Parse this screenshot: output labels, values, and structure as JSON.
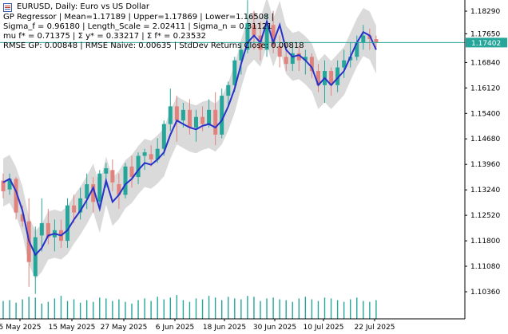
{
  "window": {
    "title": "EURUSD, Daily:  Euro vs US Dollar"
  },
  "indicator": {
    "line1": "GP Regressor | Mean=1.17189 | Upper=1.17869 | Lower=1.16508 |",
    "line2": "Sigma_f = 0.96180 | Length_Scale = 2.02411 | Sigma_n = 0.31121",
    "line3": "mu f* = 0.71375 | Σ y* = 0.33217 | Σ f* = 0.23532",
    "line4": "RMSE GP: 0.00848 | RMSE Naive: 0.00635 | StdDev Returns Close: 0.00818"
  },
  "colors": {
    "bull": "#26a69a",
    "bear": "#e0837e",
    "mean_line": "#2832c8",
    "band": "#d3d3d3",
    "price_line": "#26a69a",
    "volume": "#26a69a"
  },
  "chart_data": {
    "type": "candlestick",
    "symbol": "EURUSD",
    "timeframe": "Daily",
    "ylim": [
      1.1,
      1.186
    ],
    "y_ticks": [
      "1.18290",
      "1.17650",
      "1.16840",
      "1.16120",
      "1.15400",
      "1.14680",
      "1.13960",
      "1.13240",
      "1.12520",
      "1.11800",
      "1.11080",
      "1.10360"
    ],
    "x_ticks": [
      "5 May 2025",
      "15 May 2025",
      "27 May 2025",
      "6 Jun 2025",
      "18 Jun 2025",
      "30 Jun 2025",
      "10 Jul 2025",
      "22 Jul 2025"
    ],
    "current_price": "1.17402",
    "current_price_value": 1.17402,
    "ohlc": [
      [
        1.135,
        1.137,
        1.13,
        1.132
      ],
      [
        1.1325,
        1.137,
        1.131,
        1.1355
      ],
      [
        1.1355,
        1.136,
        1.124,
        1.126
      ],
      [
        1.1255,
        1.128,
        1.122,
        1.1235
      ],
      [
        1.1235,
        1.13,
        1.105,
        1.112
      ],
      [
        1.108,
        1.122,
        1.103,
        1.119
      ],
      [
        1.1195,
        1.13,
        1.115,
        1.123
      ],
      [
        1.123,
        1.127,
        1.117,
        1.119
      ],
      [
        1.119,
        1.124,
        1.115,
        1.121
      ],
      [
        1.121,
        1.124,
        1.116,
        1.118
      ],
      [
        1.118,
        1.13,
        1.116,
        1.128
      ],
      [
        1.128,
        1.131,
        1.123,
        1.126
      ],
      [
        1.126,
        1.133,
        1.124,
        1.13
      ],
      [
        1.13,
        1.137,
        1.127,
        1.134
      ],
      [
        1.134,
        1.136,
        1.126,
        1.129
      ],
      [
        1.129,
        1.138,
        1.128,
        1.137
      ],
      [
        1.137,
        1.14,
        1.133,
        1.1385
      ],
      [
        1.138,
        1.141,
        1.132,
        1.1345
      ],
      [
        1.134,
        1.137,
        1.127,
        1.131
      ],
      [
        1.131,
        1.14,
        1.13,
        1.139
      ],
      [
        1.139,
        1.142,
        1.133,
        1.136
      ],
      [
        1.136,
        1.143,
        1.134,
        1.142
      ],
      [
        1.142,
        1.144,
        1.138,
        1.143
      ],
      [
        1.1425,
        1.145,
        1.139,
        1.141
      ],
      [
        1.141,
        1.147,
        1.14,
        1.144
      ],
      [
        1.144,
        1.152,
        1.142,
        1.151
      ],
      [
        1.151,
        1.161,
        1.149,
        1.156
      ],
      [
        1.156,
        1.159,
        1.146,
        1.152
      ],
      [
        1.152,
        1.157,
        1.15,
        1.155
      ],
      [
        1.155,
        1.158,
        1.148,
        1.15
      ],
      [
        1.15,
        1.155,
        1.146,
        1.153
      ],
      [
        1.153,
        1.156,
        1.149,
        1.151
      ],
      [
        1.151,
        1.158,
        1.15,
        1.155
      ],
      [
        1.155,
        1.16,
        1.145,
        1.148
      ],
      [
        1.148,
        1.161,
        1.147,
        1.159
      ],
      [
        1.159,
        1.163,
        1.156,
        1.162
      ],
      [
        1.162,
        1.17,
        1.16,
        1.169
      ],
      [
        1.169,
        1.174,
        1.165,
        1.172
      ],
      [
        1.172,
        1.186,
        1.171,
        1.1795
      ],
      [
        1.179,
        1.183,
        1.172,
        1.176
      ],
      [
        1.176,
        1.18,
        1.169,
        1.172
      ],
      [
        1.172,
        1.182,
        1.17,
        1.179
      ],
      [
        1.179,
        1.183,
        1.171,
        1.173
      ],
      [
        1.173,
        1.176,
        1.167,
        1.17
      ],
      [
        1.17,
        1.174,
        1.166,
        1.168
      ],
      [
        1.168,
        1.173,
        1.166,
        1.171
      ],
      [
        1.171,
        1.173,
        1.166,
        1.169
      ],
      [
        1.169,
        1.172,
        1.165,
        1.17
      ],
      [
        1.17,
        1.171,
        1.164,
        1.166
      ],
      [
        1.166,
        1.168,
        1.16,
        1.162
      ],
      [
        1.162,
        1.169,
        1.157,
        1.166
      ],
      [
        1.166,
        1.167,
        1.159,
        1.162
      ],
      [
        1.162,
        1.169,
        1.16,
        1.167
      ],
      [
        1.167,
        1.172,
        1.164,
        1.169
      ],
      [
        1.169,
        1.174,
        1.167,
        1.17
      ],
      [
        1.17,
        1.176,
        1.169,
        1.174
      ],
      [
        1.174,
        1.179,
        1.172,
        1.176
      ],
      [
        1.176,
        1.178,
        1.172,
        1.175
      ],
      [
        1.175,
        1.176,
        1.172,
        1.174
      ]
    ],
    "gp_mean": [
      1.1345,
      1.1355,
      1.132,
      1.1265,
      1.118,
      1.114,
      1.116,
      1.1195,
      1.12,
      1.1195,
      1.121,
      1.124,
      1.1265,
      1.1295,
      1.133,
      1.127,
      1.135,
      1.129,
      1.131,
      1.134,
      1.1355,
      1.138,
      1.14,
      1.1395,
      1.141,
      1.143,
      1.148,
      1.152,
      1.151,
      1.15,
      1.1495,
      1.1505,
      1.151,
      1.15,
      1.152,
      1.156,
      1.161,
      1.168,
      1.174,
      1.176,
      1.174,
      1.18,
      1.174,
      1.179,
      1.172,
      1.17,
      1.1705,
      1.169,
      1.167,
      1.162,
      1.164,
      1.162,
      1.164,
      1.166,
      1.17,
      1.174,
      1.177,
      1.176,
      1.172
    ],
    "gp_band": 0.0068,
    "volume": [
      21,
      22,
      19,
      23,
      26,
      25,
      18,
      20,
      24,
      27,
      21,
      23,
      19,
      22,
      20,
      25,
      24,
      21,
      23,
      20,
      18,
      22,
      24,
      21,
      26,
      23,
      25,
      28,
      22,
      20,
      24,
      23,
      27,
      25,
      22,
      26,
      24,
      23,
      27,
      26,
      21,
      24,
      25,
      23,
      22,
      20,
      24,
      26,
      23,
      21,
      25,
      24,
      22,
      20,
      23,
      25,
      21,
      20,
      22
    ]
  }
}
